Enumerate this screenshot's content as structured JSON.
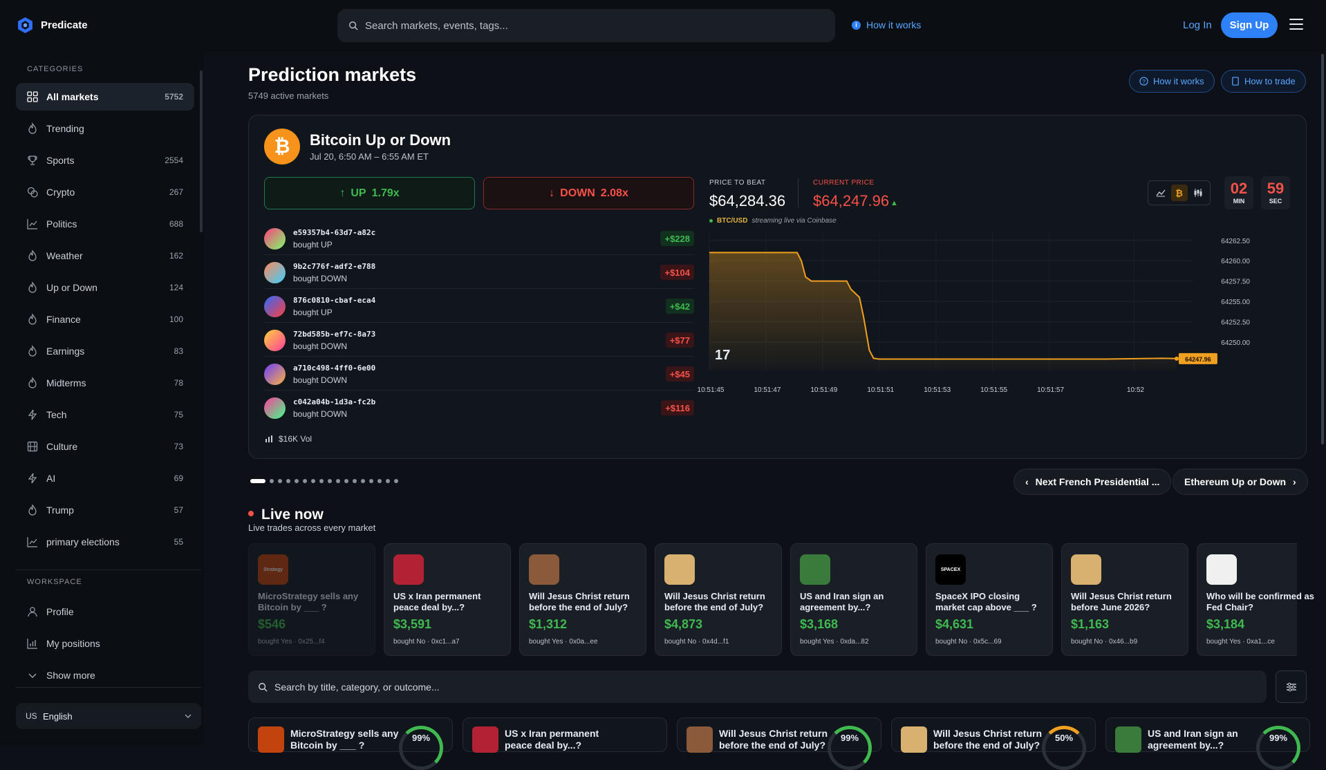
{
  "app": {
    "name": "Predicate"
  },
  "header": {
    "search_placeholder": "Search markets, events, tags...",
    "how_it_works": "How it works",
    "login": "Log In",
    "signup": "Sign Up"
  },
  "sidebar": {
    "categories_label": "CATEGORIES",
    "categories": [
      {
        "label": "All markets",
        "count": "5752",
        "icon": "grid-icon"
      },
      {
        "label": "Trending",
        "count": "",
        "icon": "flame-icon"
      },
      {
        "label": "Sports",
        "count": "2554",
        "icon": "trophy-icon"
      },
      {
        "label": "Crypto",
        "count": "267",
        "icon": "coins-icon"
      },
      {
        "label": "Politics",
        "count": "688",
        "icon": "chart-icon"
      },
      {
        "label": "Weather",
        "count": "162",
        "icon": "flame-icon"
      },
      {
        "label": "Up or Down",
        "count": "124",
        "icon": "flame-icon"
      },
      {
        "label": "Finance",
        "count": "100",
        "icon": "flame-icon"
      },
      {
        "label": "Earnings",
        "count": "83",
        "icon": "flame-icon"
      },
      {
        "label": "Midterms",
        "count": "78",
        "icon": "flame-icon"
      },
      {
        "label": "Tech",
        "count": "75",
        "icon": "bolt-icon"
      },
      {
        "label": "Culture",
        "count": "73",
        "icon": "film-icon"
      },
      {
        "label": "AI",
        "count": "69",
        "icon": "bolt-icon"
      },
      {
        "label": "Trump",
        "count": "57",
        "icon": "flame-icon"
      },
      {
        "label": "primary elections",
        "count": "55",
        "icon": "chart-icon"
      }
    ],
    "workspace_label": "WORKSPACE",
    "workspace": [
      {
        "label": "Profile",
        "icon": "user-icon"
      },
      {
        "label": "My positions",
        "icon": "bar-chart-icon"
      },
      {
        "label": "Show more",
        "icon": "chevron-down-icon"
      }
    ],
    "language": {
      "code": "US",
      "label": "English"
    }
  },
  "main": {
    "title": "Prediction markets",
    "subtitle": "5749 active markets",
    "how_it_works": "How it works",
    "how_to_trade": "How to trade"
  },
  "featured": {
    "title": "Bitcoin Up or Down",
    "date": "Jul 20, 6:50 AM – 6:55 AM ET",
    "up_label": "UP",
    "up_mult": "1.79x",
    "down_label": "DOWN",
    "down_mult": "2.08x",
    "trades": [
      {
        "id": "e59357b4-63d7-a82c",
        "action": "bought UP",
        "amount": "+$228",
        "dir": "pos",
        "grad": "linear-gradient(135deg,#ff3d7f,#7cff6b)"
      },
      {
        "id": "9b2c776f-adf2-e788",
        "action": "bought DOWN",
        "amount": "+$104",
        "dir": "neg",
        "grad": "linear-gradient(135deg,#ff8a5b,#3ad0ff)"
      },
      {
        "id": "876c0810-cbaf-eca4",
        "action": "bought UP",
        "amount": "+$42",
        "dir": "pos",
        "grad": "linear-gradient(135deg,#2d6bff,#ff3d3d)"
      },
      {
        "id": "72bd585b-ef7c-8a73",
        "action": "bought DOWN",
        "amount": "+$77",
        "dir": "neg",
        "grad": "linear-gradient(135deg,#ffd23d,#ff3d9a)"
      },
      {
        "id": "a710c498-4ff0-6e00",
        "action": "bought DOWN",
        "amount": "+$45",
        "dir": "neg",
        "grad": "linear-gradient(135deg,#6a3dff,#ffb23d)"
      },
      {
        "id": "c042a04b-1d3a-fc2b",
        "action": "bought DOWN",
        "amount": "+$116",
        "dir": "neg",
        "grad": "linear-gradient(135deg,#ff3d9a,#3dff8a)"
      }
    ],
    "volume": "$16K Vol",
    "price_to_beat_label": "PRICE TO BEAT",
    "price_to_beat": "$64,284.36",
    "current_price_label": "CURRENT PRICE",
    "current_price": "$64,247.96",
    "pair": "BTC/USD",
    "stream_note": "streaming live via Coinbase",
    "timer_min": "02",
    "timer_min_label": "MIN",
    "timer_sec": "59",
    "timer_sec_label": "SEC",
    "current_tag": "64247.96"
  },
  "chart_data": {
    "type": "area",
    "x_ticks": [
      "10:51:45",
      "10:51:47",
      "10:51:49",
      "10:51:51",
      "10:51:53",
      "10:51:55",
      "10:51:57",
      "10:52"
    ],
    "y_ticks": [
      "64262.50",
      "64260.00",
      "64257.50",
      "64255.00",
      "64252.50",
      "64250.00"
    ],
    "ylim": [
      64246.5,
      64263.5
    ],
    "x": [
      0,
      3.1,
      3.25,
      3.4,
      3.6,
      4.0,
      4.85,
      5.0,
      5.3,
      5.45,
      5.65,
      5.8,
      6.0,
      6.4,
      7,
      8,
      9,
      10,
      12,
      14,
      16,
      16.5
    ],
    "y": [
      64261.0,
      64261.0,
      64260.0,
      64258.0,
      64257.5,
      64257.5,
      64257.5,
      64256.5,
      64255.5,
      64253.0,
      64249.0,
      64248.0,
      64247.9,
      64247.9,
      64247.9,
      64247.9,
      64247.9,
      64247.9,
      64247.9,
      64247.9,
      64248.0,
      64247.96
    ],
    "x_tick_positions": [
      0,
      2,
      4,
      6,
      8,
      10,
      12,
      15
    ],
    "xlim": [
      0,
      16.6
    ],
    "color": "#f0a020",
    "title": "",
    "xlabel": "",
    "ylabel": ""
  },
  "carousel": {
    "prev_label": "Next French Presidential ...",
    "next_label": "Ethereum Up or Down"
  },
  "live": {
    "title": "Live now",
    "subtitle": "Live trades across every market",
    "cards": [
      {
        "q1": "MicroStrategy sells any",
        "q2": "Bitcoin by ___ ?",
        "price": "$546",
        "by": "bought Yes · 0x25...f4",
        "thumb": "#c1440e",
        "thumb_text": "Strategy"
      },
      {
        "q1": "US x Iran permanent",
        "q2": "peace deal by...?",
        "price": "$3,591",
        "by": "bought No · 0xc1...a7",
        "thumb": "#b22234",
        "thumb_text": ""
      },
      {
        "q1": "Will Jesus Christ return",
        "q2": "before the end of July?",
        "price": "$1,312",
        "by": "bought Yes · 0x0a...ee",
        "thumb": "#8a5a3a",
        "thumb_text": ""
      },
      {
        "q1": "Will Jesus Christ return",
        "q2": "before the end of July?",
        "price": "$4,873",
        "by": "bought No · 0x4d...f1",
        "thumb": "#d8b070",
        "thumb_text": ""
      },
      {
        "q1": "US and Iran sign an",
        "q2": "agreement by...?",
        "price": "$3,168",
        "by": "bought Yes · 0xda...82",
        "thumb": "#3a7a3a",
        "thumb_text": ""
      },
      {
        "q1": "SpaceX IPO closing",
        "q2": "market cap above ___ ?",
        "price": "$4,631",
        "by": "bought No · 0x5c...69",
        "thumb": "#000000",
        "thumb_text": "SPACEX"
      },
      {
        "q1": "Will Jesus Christ return",
        "q2": "before June 2026?",
        "price": "$1,163",
        "by": "bought No · 0x46...b9",
        "thumb": "#d8b070",
        "thumb_text": ""
      },
      {
        "q1": "Who will be confirmed as",
        "q2": "Fed Chair?",
        "price": "$3,184",
        "by": "bought Yes · 0xa1...ce",
        "thumb": "#f0f0f0",
        "thumb_text": ""
      }
    ]
  },
  "list": {
    "search_placeholder": "Search by title, category, or outcome...",
    "cards": [
      {
        "q": "MicroStrategy sells any Bitcoin by ___ ?",
        "pct": "99%",
        "thumb": "#c1440e",
        "ring": "#3fb950"
      },
      {
        "q": "US x Iran permanent peace deal by...?",
        "pct": "",
        "thumb": "#b22234",
        "ring": ""
      },
      {
        "q": "Will Jesus Christ return before the end of July?",
        "pct": "99%",
        "thumb": "#8a5a3a",
        "ring": "#3fb950"
      },
      {
        "q": "Will Jesus Christ return before the end of July?",
        "pct": "50%",
        "thumb": "#d8b070",
        "ring": "#f0a020"
      },
      {
        "q": "US and Iran sign an agreement by...?",
        "pct": "99%",
        "thumb": "#3a7a3a",
        "ring": "#3fb950"
      }
    ]
  }
}
